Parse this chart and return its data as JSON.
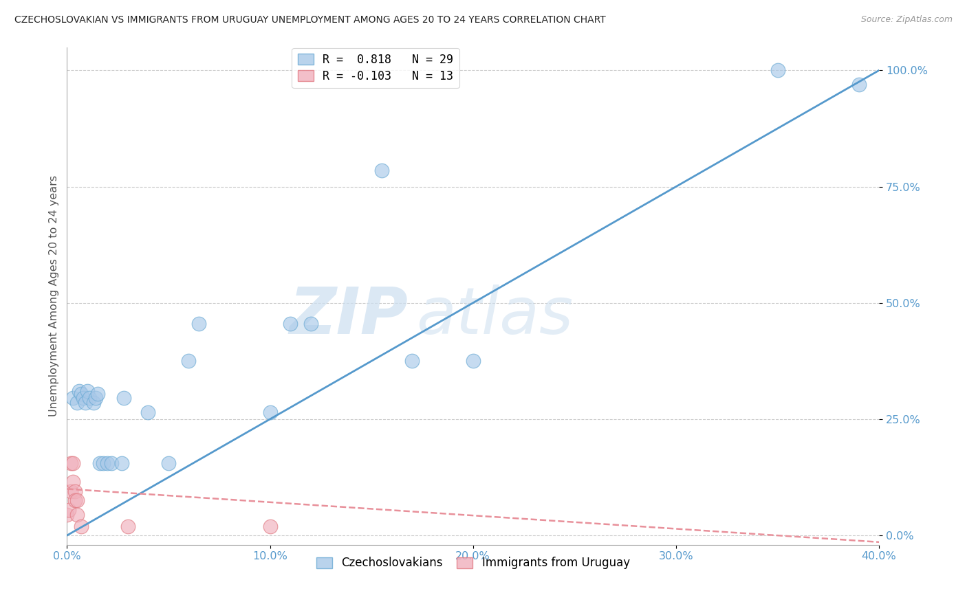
{
  "title": "CZECHOSLOVAKIAN VS IMMIGRANTS FROM URUGUAY UNEMPLOYMENT AMONG AGES 20 TO 24 YEARS CORRELATION CHART",
  "source": "Source: ZipAtlas.com",
  "ylabel": "Unemployment Among Ages 20 to 24 years",
  "xlim": [
    0.0,
    0.4
  ],
  "ylim": [
    -0.02,
    1.05
  ],
  "xticks": [
    0.0,
    0.1,
    0.2,
    0.3,
    0.4
  ],
  "xtick_labels": [
    "0.0%",
    "10.0%",
    "20.0%",
    "30.0%",
    "40.0%"
  ],
  "yticks": [
    0.0,
    0.25,
    0.5,
    0.75,
    1.0
  ],
  "ytick_labels": [
    "0.0%",
    "25.0%",
    "50.0%",
    "75.0%",
    "100.0%"
  ],
  "watermark_zip": "ZIP",
  "watermark_atlas": "atlas",
  "legend_label_blue": "Czechoslovakians",
  "legend_label_pink": "Immigrants from Uruguay",
  "blue_color": "#a8c8e8",
  "pink_color": "#f0b0bc",
  "blue_edge_color": "#6aaad4",
  "pink_edge_color": "#e07880",
  "blue_line_color": "#5599cc",
  "pink_line_color": "#e8909a",
  "blue_R_label": "R =  0.818",
  "blue_N_label": "N = 29",
  "pink_R_label": "R = -0.103",
  "pink_N_label": "N = 13",
  "blue_dots": [
    [
      0.003,
      0.295
    ],
    [
      0.005,
      0.285
    ],
    [
      0.006,
      0.31
    ],
    [
      0.007,
      0.305
    ],
    [
      0.008,
      0.295
    ],
    [
      0.009,
      0.285
    ],
    [
      0.01,
      0.31
    ],
    [
      0.011,
      0.295
    ],
    [
      0.013,
      0.285
    ],
    [
      0.014,
      0.295
    ],
    [
      0.015,
      0.305
    ],
    [
      0.016,
      0.155
    ],
    [
      0.018,
      0.155
    ],
    [
      0.02,
      0.155
    ],
    [
      0.022,
      0.155
    ],
    [
      0.027,
      0.155
    ],
    [
      0.028,
      0.295
    ],
    [
      0.04,
      0.265
    ],
    [
      0.05,
      0.155
    ],
    [
      0.06,
      0.375
    ],
    [
      0.065,
      0.455
    ],
    [
      0.1,
      0.265
    ],
    [
      0.11,
      0.455
    ],
    [
      0.12,
      0.455
    ],
    [
      0.155,
      0.785
    ],
    [
      0.17,
      0.375
    ],
    [
      0.2,
      0.375
    ],
    [
      0.35,
      1.0
    ],
    [
      0.39,
      0.97
    ]
  ],
  "pink_dots": [
    [
      0.0,
      0.045
    ],
    [
      0.001,
      0.055
    ],
    [
      0.002,
      0.095
    ],
    [
      0.002,
      0.155
    ],
    [
      0.003,
      0.155
    ],
    [
      0.003,
      0.115
    ],
    [
      0.004,
      0.095
    ],
    [
      0.004,
      0.075
    ],
    [
      0.005,
      0.075
    ],
    [
      0.005,
      0.045
    ],
    [
      0.007,
      0.02
    ],
    [
      0.03,
      0.02
    ],
    [
      0.1,
      0.02
    ]
  ],
  "blue_line": [
    0.0,
    0.0,
    0.4,
    1.0
  ],
  "pink_line": [
    0.0,
    0.1,
    0.42,
    -0.02
  ]
}
